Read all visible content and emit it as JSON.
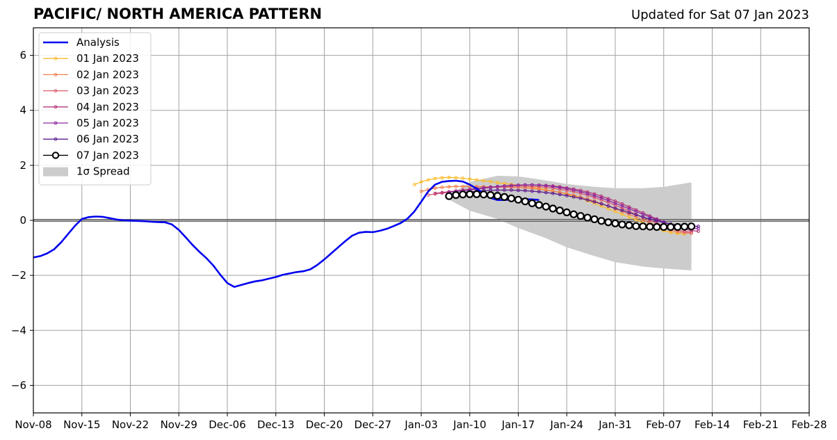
{
  "header": {
    "title": "PACIFIC/ NORTH AMERICA PATTERN",
    "updated": "Updated for Sat 07 Jan 2023"
  },
  "chart_data": {
    "type": "line",
    "title": "PACIFIC/ NORTH AMERICA PATTERN",
    "xlabel": "",
    "ylabel": "",
    "x_axis": {
      "type": "date",
      "range": [
        "2022-11-08",
        "2023-02-28"
      ],
      "ticks": [
        "2022-11-08",
        "2022-11-15",
        "2022-11-22",
        "2022-11-29",
        "2022-12-06",
        "2022-12-13",
        "2022-12-20",
        "2022-12-27",
        "2023-01-03",
        "2023-01-10",
        "2023-01-17",
        "2023-01-24",
        "2023-01-31",
        "2023-02-07",
        "2023-02-14",
        "2023-02-21",
        "2023-02-28"
      ],
      "tick_labels": [
        "Nov-08",
        "Nov-15",
        "Nov-22",
        "Nov-29",
        "Dec-06",
        "Dec-13",
        "Dec-20",
        "Dec-27",
        "Jan-03",
        "Jan-10",
        "Jan-17",
        "Jan-24",
        "Jan-31",
        "Feb-07",
        "Feb-14",
        "Feb-21",
        "Feb-28"
      ]
    },
    "y_axis": {
      "range": [
        -7,
        7
      ],
      "ticks": [
        -6,
        -4,
        -2,
        0,
        2,
        4,
        6
      ],
      "tick_labels": [
        "−6",
        "−4",
        "−2",
        "0",
        "2",
        "4",
        "6"
      ]
    },
    "grid": true,
    "zero_line": true,
    "legend": {
      "position": "top-left"
    },
    "analysis": {
      "name": "Analysis",
      "color": "#0000ee",
      "start": "2022-11-08",
      "step_days": 1,
      "values": [
        -1.35,
        -1.3,
        -1.2,
        -1.05,
        -0.8,
        -0.5,
        -0.2,
        0.05,
        0.12,
        0.14,
        0.13,
        0.08,
        0.03,
        0.0,
        -0.01,
        -0.02,
        -0.03,
        -0.05,
        -0.06,
        -0.07,
        -0.15,
        -0.35,
        -0.62,
        -0.9,
        -1.15,
        -1.38,
        -1.65,
        -1.98,
        -2.28,
        -2.42,
        -2.35,
        -2.28,
        -2.22,
        -2.18,
        -2.12,
        -2.06,
        -1.98,
        -1.93,
        -1.88,
        -1.85,
        -1.78,
        -1.62,
        -1.42,
        -1.2,
        -0.98,
        -0.76,
        -0.56,
        -0.45,
        -0.42,
        -0.43,
        -0.38,
        -0.31,
        -0.21,
        -0.1,
        0.06,
        0.32,
        0.68,
        1.05,
        1.3,
        1.4,
        1.43,
        1.44,
        1.41,
        1.3,
        1.15,
        0.98,
        0.82,
        0.74,
        0.74,
        0.76,
        0.77,
        0.77,
        0.76,
        0.74
      ]
    },
    "spread": {
      "name": "1σ Spread",
      "color": "#cccccc",
      "dates": [
        "2023-01-07",
        "2023-01-10",
        "2023-01-14",
        "2023-01-17",
        "2023-01-21",
        "2023-01-24",
        "2023-01-28",
        "2023-01-31",
        "2023-02-04",
        "2023-02-07",
        "2023-02-11"
      ],
      "upper": [
        0.9,
        1.4,
        1.62,
        1.6,
        1.45,
        1.32,
        1.22,
        1.17,
        1.17,
        1.22,
        1.38
      ],
      "lower": [
        0.75,
        0.35,
        0.05,
        -0.28,
        -0.65,
        -0.98,
        -1.3,
        -1.52,
        -1.68,
        -1.75,
        -1.82
      ]
    },
    "forecasts": [
      {
        "name": "01 Jan 2023",
        "color": "#fbbb2a",
        "start": "2023-01-02",
        "values": [
          1.3,
          1.4,
          1.47,
          1.52,
          1.55,
          1.56,
          1.55,
          1.53,
          1.5,
          1.47,
          1.44,
          1.41,
          1.37,
          1.34,
          1.31,
          1.28,
          1.24,
          1.2,
          1.16,
          1.12,
          1.07,
          1.01,
          0.95,
          0.88,
          0.8,
          0.71,
          0.62,
          0.52,
          0.42,
          0.32,
          0.22,
          0.12,
          0.02,
          -0.09,
          -0.19,
          -0.29,
          -0.38,
          -0.44,
          -0.48,
          -0.5
        ]
      },
      {
        "name": "02 Jan 2023",
        "color": "#f07f4f",
        "start": "2023-01-03",
        "values": [
          1.05,
          1.12,
          1.17,
          1.2,
          1.22,
          1.23,
          1.23,
          1.23,
          1.23,
          1.22,
          1.22,
          1.21,
          1.21,
          1.2,
          1.19,
          1.18,
          1.16,
          1.13,
          1.1,
          1.06,
          1.02,
          0.97,
          0.91,
          0.85,
          0.78,
          0.7,
          0.61,
          0.52,
          0.42,
          0.32,
          0.22,
          0.12,
          0.01,
          -0.09,
          -0.19,
          -0.28,
          -0.36,
          -0.42,
          -0.45,
          -0.47
        ]
      },
      {
        "name": "03 Jan 2023",
        "color": "#dd5a6e",
        "start": "2023-01-04",
        "values": [
          0.92,
          0.96,
          0.99,
          1.02,
          1.05,
          1.08,
          1.11,
          1.14,
          1.17,
          1.19,
          1.21,
          1.22,
          1.23,
          1.24,
          1.24,
          1.23,
          1.22,
          1.2,
          1.17,
          1.13,
          1.09,
          1.04,
          0.98,
          0.91,
          0.83,
          0.74,
          0.65,
          0.55,
          0.44,
          0.33,
          0.22,
          0.11,
          0.0,
          -0.1,
          -0.2,
          -0.29,
          -0.36,
          -0.41,
          -0.44
        ]
      },
      {
        "name": "04 Jan 2023",
        "color": "#b73779",
        "start": "2023-01-05",
        "values": [
          0.98,
          1.01,
          1.04,
          1.07,
          1.1,
          1.13,
          1.16,
          1.19,
          1.21,
          1.23,
          1.25,
          1.27,
          1.28,
          1.29,
          1.29,
          1.28,
          1.27,
          1.25,
          1.22,
          1.18,
          1.14,
          1.09,
          1.03,
          0.96,
          0.88,
          0.79,
          0.7,
          0.6,
          0.49,
          0.38,
          0.27,
          0.16,
          0.05,
          -0.06,
          -0.16,
          -0.25,
          -0.32,
          -0.37,
          -0.4
        ]
      },
      {
        "name": "05 Jan 2023",
        "color": "#8c29a0",
        "start": "2023-01-07",
        "values": [
          1.02,
          1.05,
          1.08,
          1.11,
          1.14,
          1.17,
          1.2,
          1.23,
          1.25,
          1.27,
          1.28,
          1.29,
          1.29,
          1.28,
          1.26,
          1.23,
          1.19,
          1.15,
          1.1,
          1.04,
          0.97,
          0.89,
          0.81,
          0.72,
          0.62,
          0.52,
          0.42,
          0.32,
          0.22,
          0.12,
          0.03,
          -0.06,
          -0.14,
          -0.21,
          -0.26,
          -0.29,
          -0.3
        ]
      },
      {
        "name": "06 Jan 2023",
        "color": "#5b1a8f",
        "start": "2023-01-07",
        "values": [
          0.95,
          0.98,
          1.01,
          1.04,
          1.06,
          1.08,
          1.09,
          1.1,
          1.1,
          1.1,
          1.09,
          1.08,
          1.06,
          1.04,
          1.01,
          0.98,
          0.94,
          0.9,
          0.85,
          0.8,
          0.74,
          0.67,
          0.6,
          0.52,
          0.44,
          0.36,
          0.28,
          0.2,
          0.12,
          0.05,
          -0.02,
          -0.08,
          -0.13,
          -0.17,
          -0.2,
          -0.21,
          -0.22
        ]
      }
    ],
    "current": {
      "name": "07 Jan 2023",
      "color": "#000000",
      "start": "2023-01-07",
      "values": [
        0.88,
        0.92,
        0.94,
        0.95,
        0.95,
        0.94,
        0.92,
        0.89,
        0.85,
        0.8,
        0.75,
        0.69,
        0.62,
        0.56,
        0.5,
        0.43,
        0.36,
        0.29,
        0.22,
        0.16,
        0.1,
        0.04,
        -0.02,
        -0.07,
        -0.11,
        -0.15,
        -0.18,
        -0.21,
        -0.22,
        -0.23,
        -0.24,
        -0.24,
        -0.24,
        -0.24,
        -0.23,
        -0.22
      ]
    },
    "legend_entries": [
      "Analysis",
      "01 Jan 2023",
      "02 Jan 2023",
      "03 Jan 2023",
      "04 Jan 2023",
      "05 Jan 2023",
      "06 Jan 2023",
      "07 Jan 2023",
      "1σ Spread"
    ]
  }
}
